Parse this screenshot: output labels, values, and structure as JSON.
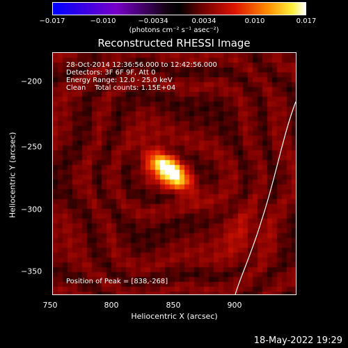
{
  "colorbar": {
    "ticks": [
      "−0.017",
      "−0.010",
      "−0.0034",
      "0.0034",
      "0.010",
      "0.017"
    ],
    "unit": "(photons cm⁻² s⁻¹ asec⁻²)"
  },
  "title": "Reconstructed RHESSI Image",
  "annotations": {
    "time": "28-Oct-2014 12:36:56.000 to 12:42:56.000",
    "detectors": "Detectors: 3F 6F 9F, Att 0",
    "energy": "Energy Range: 12.0 - 25.0 keV",
    "clean": "Clean    Total counts: 1.15E+04",
    "peak": "Position of Peak = [838,-268]"
  },
  "axes": {
    "xlabel": "Heliocentric X (arcsec)",
    "ylabel": "Heliocentric Y (arcsec)",
    "xticks": [
      "750",
      "800",
      "850",
      "900"
    ],
    "yticks": [
      "−200",
      "−250",
      "−300",
      "−350"
    ]
  },
  "datestamp": "18-May-2022 19:29"
}
